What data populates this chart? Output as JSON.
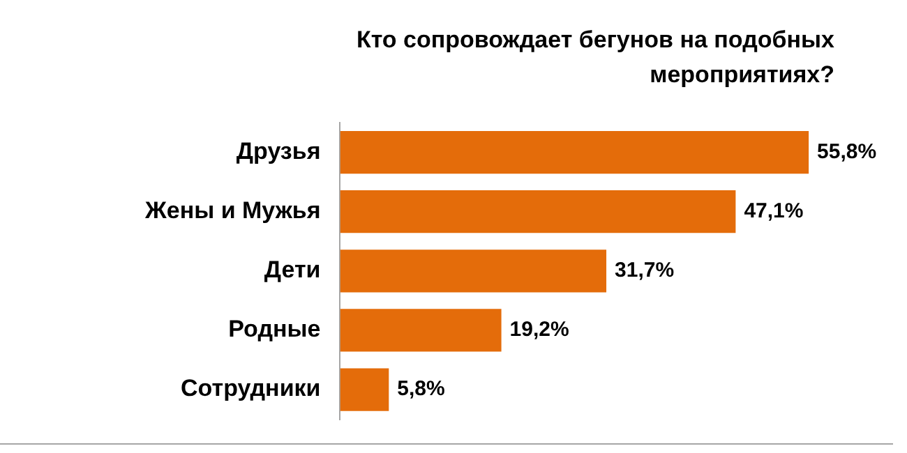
{
  "chart_data": {
    "type": "bar",
    "orientation": "horizontal",
    "title": "Кто сопровождает бегунов на подобных мероприятиях?",
    "categories": [
      "Друзья",
      "Жены и Мужья",
      "Дети",
      "Родные",
      "Сотрудники"
    ],
    "values": [
      55.8,
      47.1,
      31.7,
      19.2,
      5.8
    ],
    "value_labels": [
      "55,8%",
      "47,1%",
      "31,7%",
      "19,2%",
      "5,8%"
    ],
    "color": "#e46c0a"
  }
}
